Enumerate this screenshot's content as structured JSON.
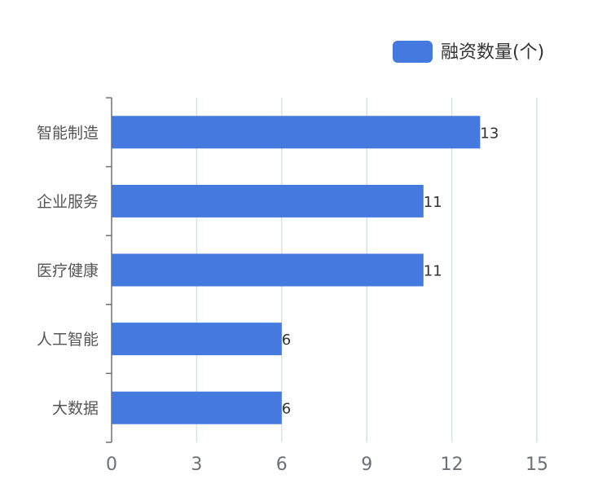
{
  "chart_data": {
    "type": "bar",
    "orientation": "horizontal",
    "categories": [
      "智能制造",
      "企业服务",
      "医疗健康",
      "人工智能",
      "大数据"
    ],
    "series": [
      {
        "name": "融资数量(个)",
        "values": [
          13,
          11,
          11,
          6,
          6
        ],
        "color": "#4479e0"
      }
    ],
    "xlim": [
      0,
      15
    ],
    "x_ticks": [
      0,
      3,
      6,
      9,
      12,
      15
    ],
    "grid": "vertical",
    "legend": "top-right",
    "data_labels": true
  }
}
